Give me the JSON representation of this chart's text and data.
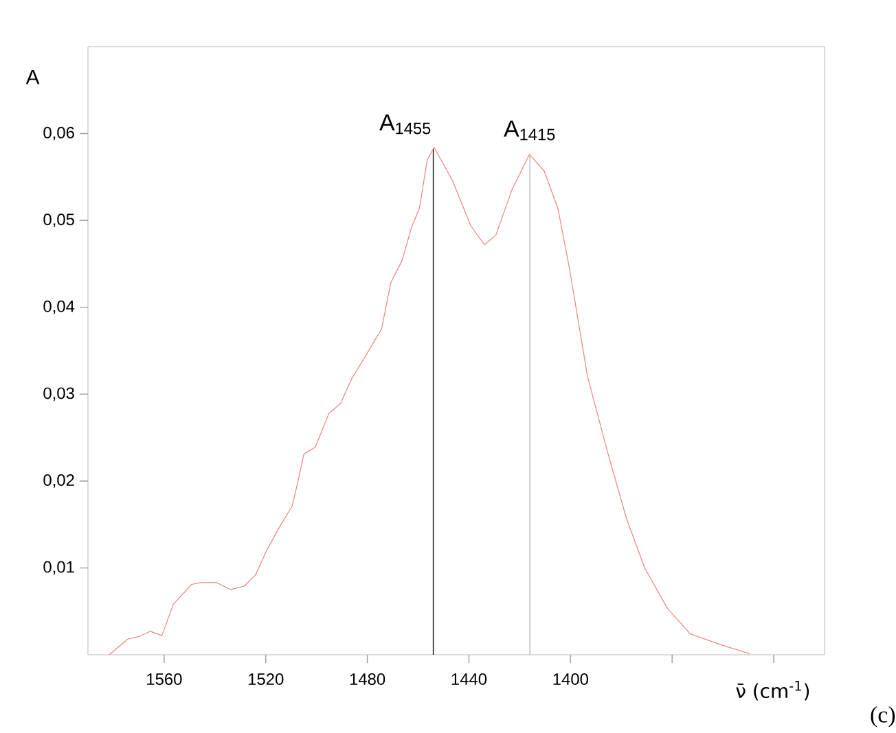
{
  "chart_data": {
    "type": "line",
    "xlabel": "ν̄ (cm$^{-1}$)",
    "ylabel": "A",
    "xlim": [
      1590,
      1300
    ],
    "ylim": [
      0,
      0.07
    ],
    "xticks": [
      1560,
      1520,
      1480,
      1440,
      1400,
      {
        "value": 1360,
        "label": null
      },
      {
        "value": 1320,
        "label": null
      }
    ],
    "yticks": [
      {
        "value": 0.01,
        "label": "0,01"
      },
      {
        "value": 0.02,
        "label": "0,02"
      },
      {
        "value": 0.03,
        "label": "0,03"
      },
      {
        "value": 0.04,
        "label": "0,04"
      },
      {
        "value": 0.05,
        "label": "0,05"
      },
      {
        "value": 0.06,
        "label": "0,06"
      }
    ],
    "grid": false,
    "marker": "none",
    "series": [
      {
        "color": "#f08080",
        "x": [
          1581.6,
          1574.4,
          1569.9,
          1565.4,
          1560.9,
          1556.4,
          1549.2,
          1545.6,
          1539.3,
          1533.9,
          1528.5,
          1524,
          1519.5,
          1514,
          1509.6,
          1506.9,
          1505,
          1500.5,
          1495.1,
          1490.6,
          1486.1,
          1480.7,
          1474.4,
          1470.8,
          1466.3,
          1462.7,
          1459.5,
          1456.4,
          1453.7,
          1446.5,
          1439.3,
          1433.9,
          1429.4,
          1423.1,
          1416.2,
          1410.4,
          1405,
          1400.5,
          1393.3,
          1385.2,
          1378,
          1370.8,
          1361.8,
          1352.8,
          1340.2,
          1329.3
        ],
        "values": [
          0,
          0.0018,
          0.0021,
          0.0027,
          0.0022,
          0.0058,
          0.0081,
          0.0083,
          0.0083,
          0.0075,
          0.0079,
          0.0092,
          0.0121,
          0.015,
          0.0171,
          0.0205,
          0.0231,
          0.0239,
          0.0278,
          0.0289,
          0.0318,
          0.0344,
          0.0375,
          0.0428,
          0.0454,
          0.0491,
          0.0514,
          0.057,
          0.0584,
          0.0546,
          0.0494,
          0.0472,
          0.0483,
          0.0535,
          0.0576,
          0.0557,
          0.0514,
          0.0446,
          0.032,
          0.0231,
          0.0157,
          0.01,
          0.0053,
          0.0024,
          0.0011,
          0.0001
        ]
      }
    ],
    "ref_lines": [
      {
        "axis": "x",
        "value": 1454,
        "label": "A$_{1455}$",
        "color": "#404040"
      },
      {
        "axis": "x",
        "value": 1416,
        "label": "A$_{1415}$",
        "color": "#c8c8c8"
      }
    ],
    "annotations": [
      "(c)"
    ]
  }
}
